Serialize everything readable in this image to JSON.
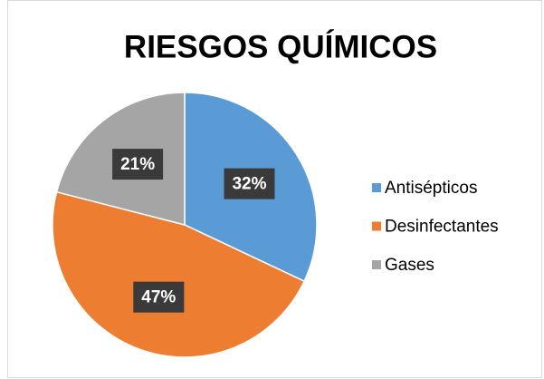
{
  "chart_data": {
    "type": "pie",
    "title": "RIESGOS QUÍMICOS",
    "categories": [
      "Antisépticos",
      "Desinfectantes",
      "Gases"
    ],
    "values": [
      32,
      47,
      21
    ],
    "value_labels": [
      "32%",
      "47%",
      "21%"
    ],
    "colors": [
      "#5b9bd5",
      "#ed7d31",
      "#a5a5a5"
    ],
    "legend": "right"
  }
}
